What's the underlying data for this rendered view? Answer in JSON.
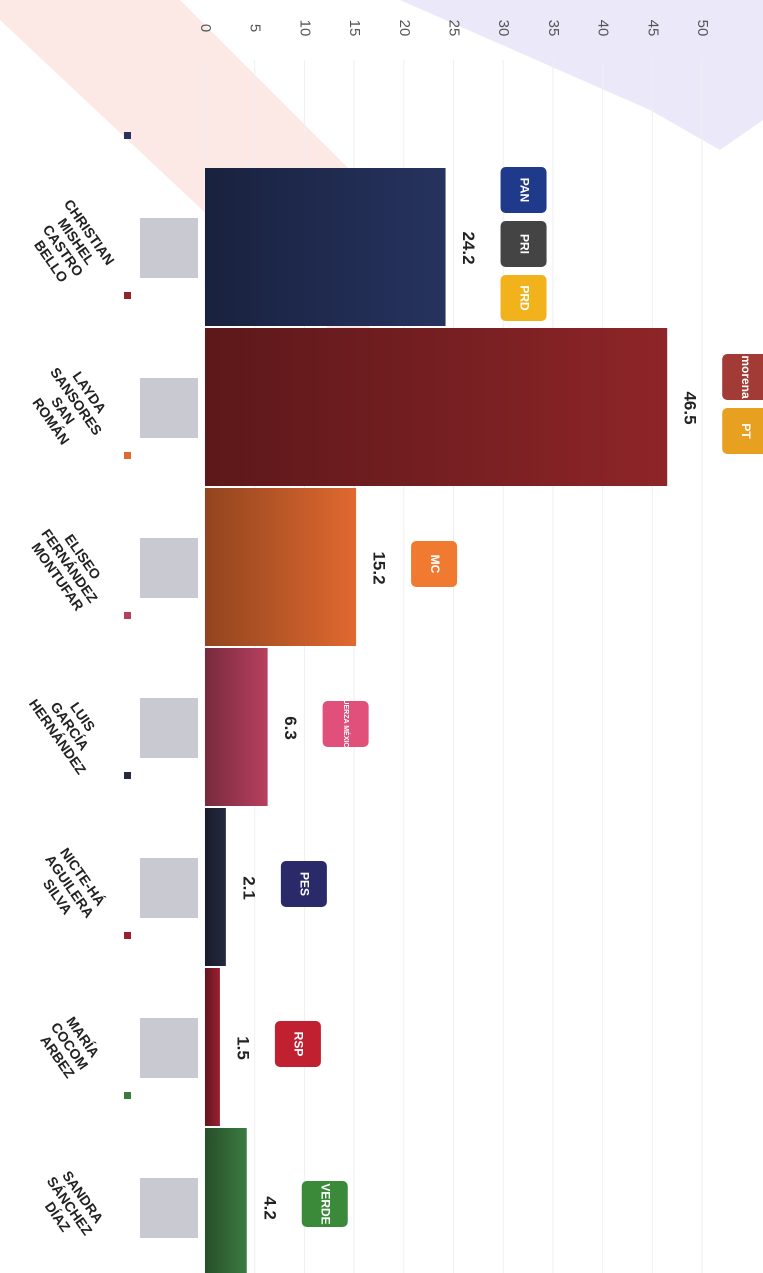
{
  "chart_data": {
    "type": "bar",
    "categories": [
      "CHRISTIAN MISHEL CASTRO BELLO",
      "LAYDA SANSORES SAN ROMÁN",
      "ELISEO FERNÁNDEZ MONTUFAR",
      "LUIS GARCÍA HERNÁNDEZ",
      "NICTE-HÁ AGUILERA SILVA",
      "MARÍA COCOM ARBEZ",
      "SANDRA SÁNCHEZ DÍAZ"
    ],
    "values": [
      24.2,
      46.5,
      15.2,
      6.3,
      2.1,
      1.5,
      4.2
    ],
    "colors": [
      "#26335f",
      "#8e2528",
      "#e0692f",
      "#b8405f",
      "#262a40",
      "#9a2030",
      "#3b7a40"
    ],
    "parties": [
      [
        {
          "name": "PAN",
          "color": "#1f3a8a"
        },
        {
          "name": "PRI",
          "color": "#444"
        },
        {
          "name": "PRD",
          "color": "#f2b21b"
        }
      ],
      [
        {
          "name": "morena",
          "color": "#a23a36"
        },
        {
          "name": "PT",
          "color": "#e8a020"
        }
      ],
      [
        {
          "name": "MC",
          "color": "#f07a30"
        }
      ],
      [
        {
          "name": "FUERZA MÉXICO",
          "color": "#e0507a"
        }
      ],
      [
        {
          "name": "PES",
          "color": "#2a2a6a"
        }
      ],
      [
        {
          "name": "RSP",
          "color": "#c02030"
        }
      ],
      [
        {
          "name": "VERDE",
          "color": "#3a8a3a"
        }
      ]
    ],
    "xlim": [
      0,
      50
    ],
    "xticks": [
      0,
      5,
      10,
      15,
      20,
      25,
      30,
      35,
      40,
      45,
      50
    ],
    "grid": true
  }
}
